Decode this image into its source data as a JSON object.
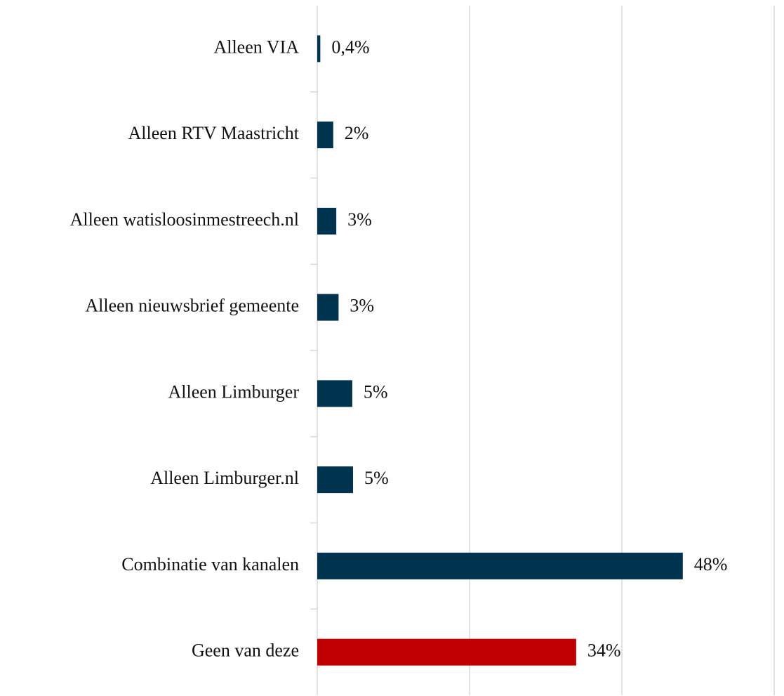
{
  "chart_data": {
    "type": "hbar",
    "categories": [
      "Alleen VIA",
      "Alleen RTV Maastricht",
      "Alleen watisloosinmestreech.nl",
      "Alleen nieuwsbrief gemeente",
      "Alleen Limburger",
      "Alleen Limburger.nl",
      "Combinatie van kanalen",
      "Geen van deze"
    ],
    "values": [
      0.4,
      2.1,
      2.5,
      2.8,
      4.6,
      4.7,
      48,
      34
    ],
    "value_labels": [
      "0,4%",
      "2%",
      "3%",
      "3%",
      "5%",
      "5%",
      "48%",
      "34%"
    ],
    "colors": [
      "#00334e",
      "#00334e",
      "#00334e",
      "#00334e",
      "#00334e",
      "#00334e",
      "#00334e",
      "#c00000"
    ],
    "xlim": [
      0,
      60
    ],
    "xticks": [
      0,
      20,
      40,
      60
    ],
    "grid": true
  }
}
